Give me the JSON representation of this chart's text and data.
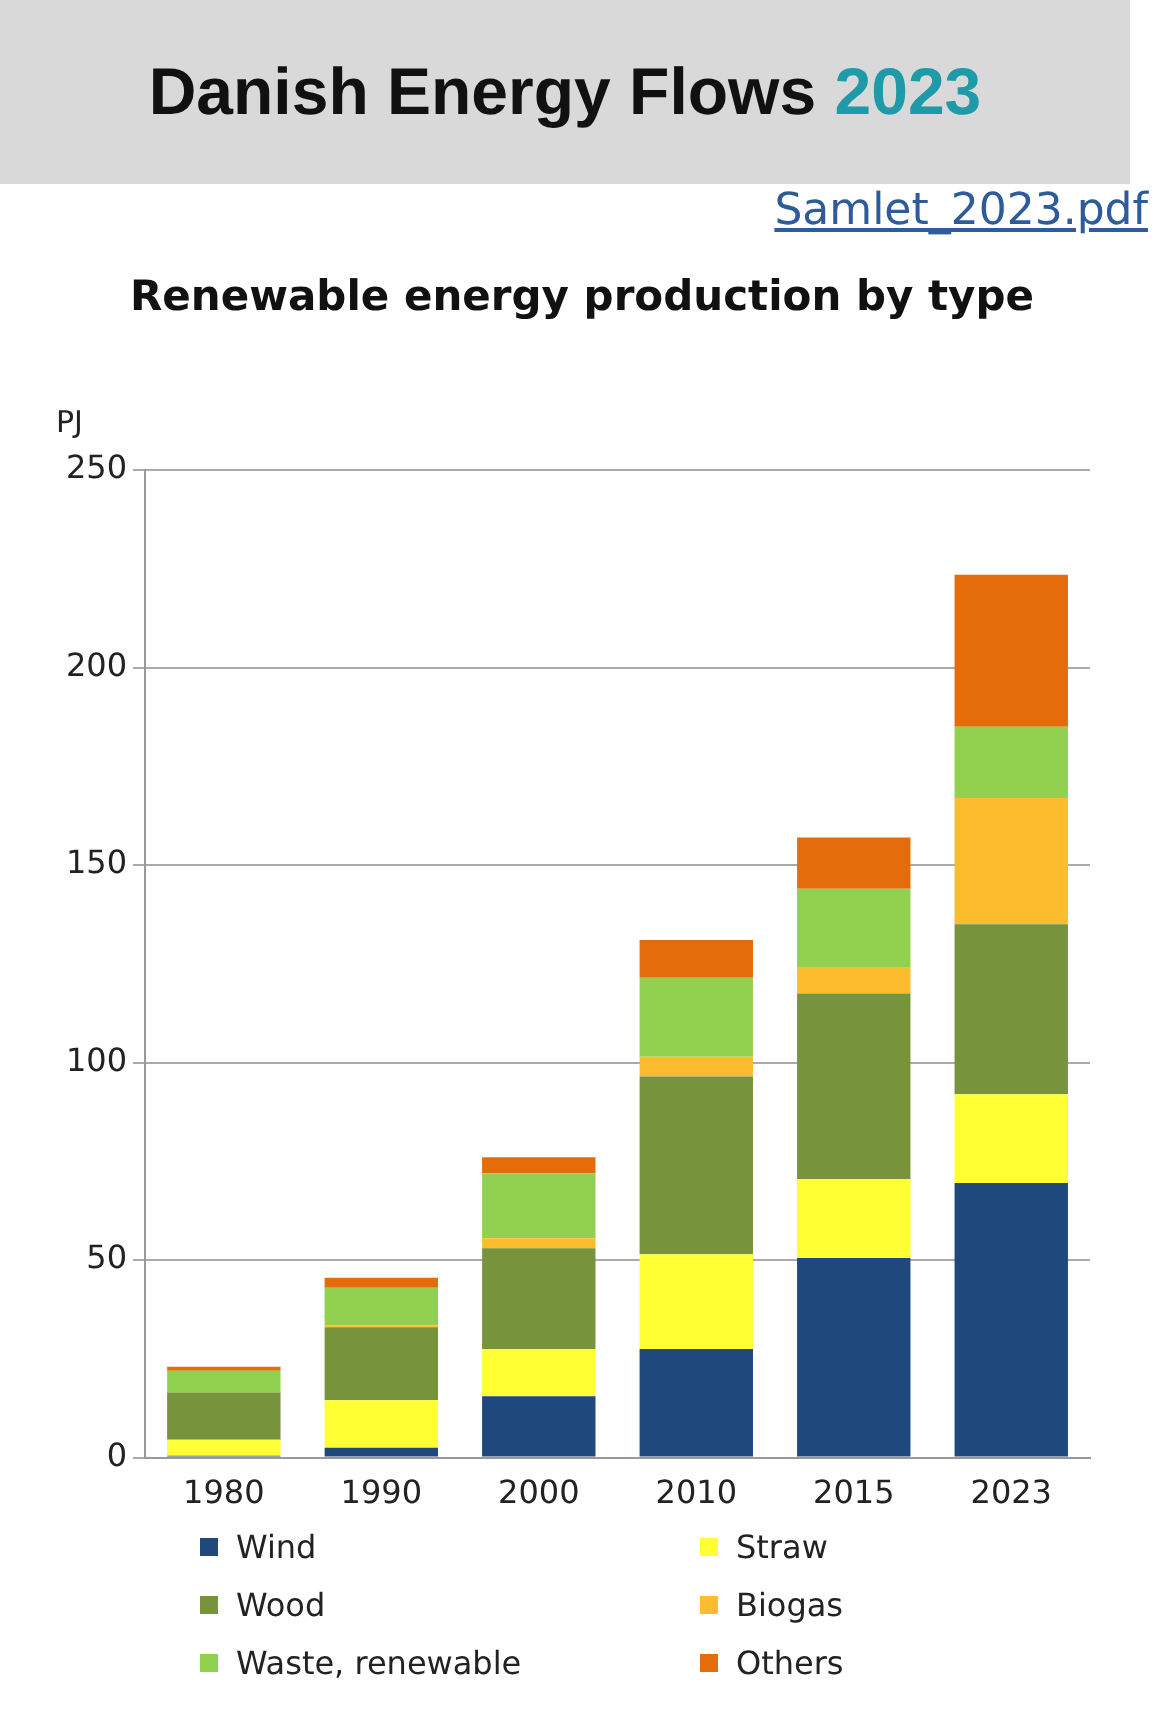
{
  "chart_data": {
    "type": "bar",
    "title": "Danish Energy Flows 2023",
    "subtitle": "Renewable energy production by type",
    "ylabel": "PJ",
    "annotations": [
      "Samlet_2023.pdf"
    ],
    "categories": [
      "1980",
      "1990",
      "2000",
      "2010",
      "2015",
      "2023"
    ],
    "stacked": true,
    "series": [
      {
        "name": "Wind",
        "color": "#1f497d",
        "values": [
          0.5,
          2.5,
          15.5,
          27.5,
          50.5,
          69.5
        ]
      },
      {
        "name": "Straw",
        "color": "#ffff33",
        "values": [
          4,
          12,
          12,
          24,
          20,
          22.5
        ]
      },
      {
        "name": "Wood",
        "color": "#77933c",
        "values": [
          12,
          18.5,
          25.5,
          45,
          47,
          43
        ]
      },
      {
        "name": "Biogas",
        "color": "#fbbc2d",
        "values": [
          0,
          0.5,
          2.5,
          5,
          6.5,
          32
        ]
      },
      {
        "name": "Waste, renewable",
        "color": "#92d050",
        "values": [
          5.5,
          9.5,
          16.5,
          20,
          20,
          18
        ]
      },
      {
        "name": "Others",
        "color": "#e46c0a",
        "values": [
          1,
          2.5,
          4,
          9.5,
          13,
          38.5
        ]
      }
    ],
    "ylim": [
      0,
      250
    ],
    "yticks": [
      0,
      50,
      100,
      150,
      200,
      250
    ],
    "grid": "y",
    "legend": "bottom"
  }
}
